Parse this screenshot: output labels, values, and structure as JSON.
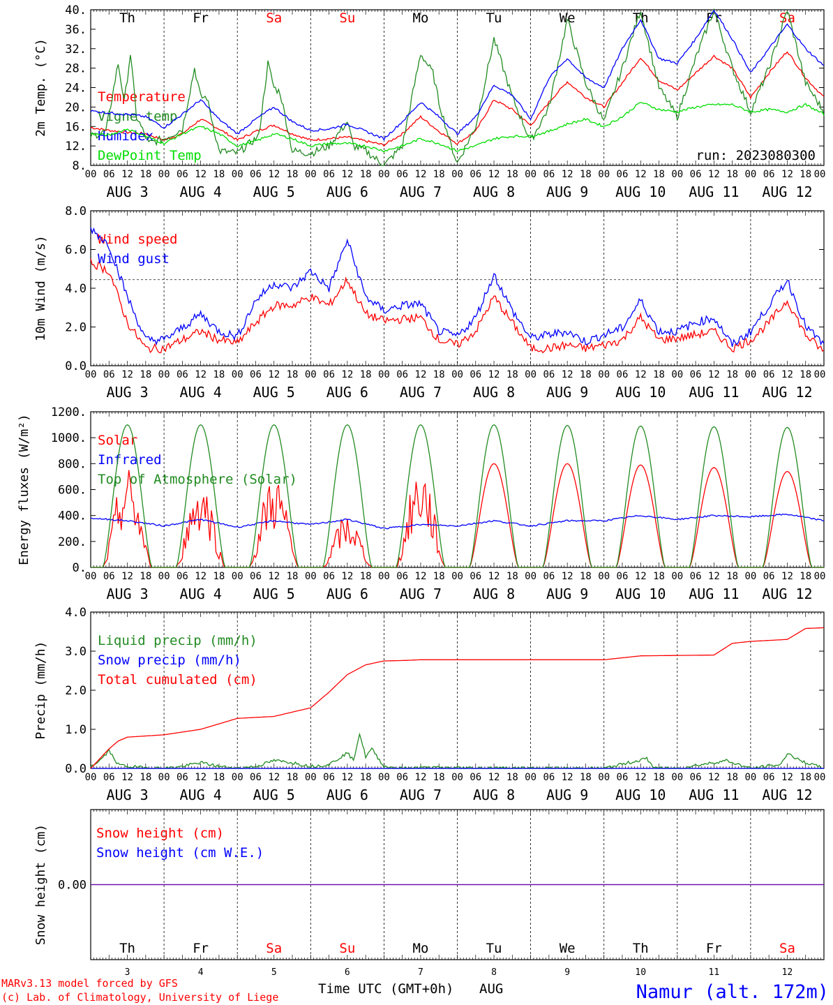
{
  "colors": {
    "red": "#ff0000",
    "green": "#228b22",
    "blue": "#0000ff",
    "lime": "#00dd00",
    "purple": "#6a0dad",
    "axis": "#000000"
  },
  "days": [
    "Th",
    "Fr",
    "Sa",
    "Su",
    "Mo",
    "Tu",
    "We",
    "Th",
    "Fr",
    "Sa"
  ],
  "weekend_days": [
    2,
    3,
    9
  ],
  "date_labels": [
    "AUG  3",
    "AUG  4",
    "AUG  5",
    "AUG  6",
    "AUG  7",
    "AUG  8",
    "AUG  9",
    "AUG 10",
    "AUG 11",
    "AUG 12"
  ],
  "hour_labels": [
    "00",
    "06",
    "12",
    "18"
  ],
  "hour_end_label": "00",
  "chart_data": [
    {
      "id": "temp",
      "type": "line",
      "ylabel": "2m Temp. (°C)",
      "ylim": [
        8,
        40
      ],
      "yticks": [
        "8.",
        "12.",
        "16.",
        "20.",
        "24.",
        "28.",
        "32.",
        "36.",
        "40."
      ],
      "grid": false,
      "annotation": "run: 2023080300",
      "x_unit": "hours from AUG 3 00 UTC",
      "series": [
        {
          "name": "Temperature",
          "color": "red",
          "x": [
            0,
            6,
            12,
            18,
            24,
            30,
            36,
            42,
            48,
            54,
            60,
            66,
            72,
            78,
            84,
            90,
            96,
            102,
            108,
            114,
            120,
            126,
            132,
            138,
            144,
            150,
            156,
            162,
            168,
            174,
            180,
            186,
            192,
            198,
            204,
            210,
            216,
            222,
            228,
            234,
            240
          ],
          "values": [
            15.8,
            15.2,
            14.8,
            14.5,
            13.2,
            14.5,
            17.5,
            15.5,
            13.2,
            15.0,
            16.3,
            14.5,
            13.2,
            13.5,
            13.8,
            13.0,
            12.2,
            14.5,
            18.0,
            15.0,
            12.5,
            15.0,
            21.5,
            19.5,
            16.2,
            21.0,
            25.2,
            22.0,
            20.0,
            25.0,
            30.2,
            25.5,
            23.5,
            27.0,
            30.5,
            28.0,
            22.0,
            27.0,
            31.5,
            26.0,
            22.0
          ]
        },
        {
          "name": "Vigne temp",
          "color": "green",
          "x": [
            0,
            5,
            9,
            11,
            13,
            15,
            19,
            24,
            30,
            34,
            36,
            38,
            42,
            48,
            55,
            58,
            60,
            62,
            66,
            72,
            78,
            84,
            86,
            90,
            96,
            102,
            108,
            112,
            114,
            118,
            120,
            126,
            132,
            138,
            144,
            150,
            156,
            162,
            168,
            174,
            180,
            186,
            192,
            198,
            204,
            210,
            216,
            222,
            228,
            234,
            240
          ],
          "values": [
            14.0,
            15.0,
            29.0,
            21.0,
            31.0,
            18.0,
            12.5,
            13.5,
            15.5,
            28.0,
            22.0,
            22.0,
            11.0,
            10.5,
            14.0,
            29.0,
            24.0,
            23.0,
            11.0,
            10.5,
            12.0,
            17.0,
            12.0,
            11.0,
            8.0,
            12.0,
            31.0,
            27.0,
            21.0,
            12.0,
            8.5,
            16.0,
            34.0,
            22.0,
            13.0,
            20.0,
            38.0,
            25.0,
            17.0,
            28.0,
            40.0,
            24.0,
            18.0,
            30.0,
            40.0,
            28.0,
            19.0,
            28.0,
            40.0,
            25.0,
            19.0
          ]
        },
        {
          "name": "Humidex",
          "color": "blue",
          "x": [
            0,
            6,
            12,
            18,
            24,
            30,
            36,
            42,
            48,
            54,
            60,
            66,
            72,
            78,
            84,
            90,
            96,
            102,
            108,
            114,
            120,
            126,
            132,
            138,
            144,
            150,
            156,
            162,
            168,
            174,
            180,
            186,
            192,
            198,
            204,
            210,
            216,
            222,
            228,
            234,
            240
          ],
          "values": [
            19.2,
            18.8,
            18.5,
            18.0,
            15.8,
            18.5,
            21.5,
            17.5,
            14.5,
            17.5,
            20.0,
            17.0,
            15.2,
            15.5,
            16.5,
            15.0,
            13.5,
            17.0,
            21.0,
            18.0,
            14.5,
            18.0,
            24.5,
            22.5,
            17.5,
            26.0,
            30.0,
            26.0,
            24.0,
            32.0,
            38.0,
            30.0,
            29.0,
            34.0,
            40.0,
            34.0,
            27.0,
            32.0,
            37.0,
            32.0,
            28.5
          ]
        },
        {
          "name": "DewPoint Temp",
          "color": "lime",
          "x": [
            0,
            6,
            12,
            18,
            24,
            30,
            36,
            42,
            48,
            54,
            60,
            66,
            72,
            78,
            84,
            90,
            96,
            102,
            108,
            114,
            120,
            126,
            132,
            138,
            144,
            150,
            156,
            162,
            168,
            174,
            180,
            186,
            192,
            198,
            204,
            210,
            216,
            222,
            228,
            234,
            240
          ],
          "values": [
            14.5,
            14.2,
            15.5,
            14.0,
            12.5,
            14.5,
            16.0,
            14.5,
            12.0,
            13.0,
            14.5,
            13.5,
            12.0,
            12.5,
            12.5,
            12.0,
            11.0,
            12.0,
            13.5,
            12.5,
            11.0,
            12.0,
            13.5,
            14.0,
            14.0,
            15.0,
            16.5,
            17.5,
            16.0,
            18.0,
            21.0,
            19.5,
            19.0,
            20.0,
            20.5,
            20.5,
            19.0,
            19.5,
            19.0,
            20.5,
            18.5
          ]
        }
      ]
    },
    {
      "id": "wind",
      "type": "line",
      "ylabel": "10m Wind (m/s)",
      "ylim": [
        0,
        9
      ],
      "yticks": [
        "0.0",
        "2.0",
        "4.0",
        "6.0",
        "8.0"
      ],
      "reference_line": 5,
      "x_unit": "hours from AUG 3 00 UTC",
      "series": [
        {
          "name": "Wind speed",
          "color": "red",
          "x": [
            0,
            6,
            12,
            18,
            24,
            30,
            36,
            42,
            48,
            54,
            60,
            66,
            72,
            78,
            84,
            90,
            96,
            102,
            108,
            114,
            120,
            126,
            132,
            138,
            144,
            150,
            156,
            162,
            168,
            174,
            180,
            186,
            192,
            198,
            204,
            210,
            216,
            222,
            228,
            234,
            240
          ],
          "values": [
            6.0,
            5.5,
            2.5,
            1.0,
            1.0,
            1.5,
            2.0,
            1.5,
            1.3,
            2.5,
            3.5,
            3.5,
            4.0,
            3.5,
            5.0,
            3.0,
            2.6,
            2.7,
            2.8,
            1.5,
            1.2,
            2.0,
            4.0,
            2.5,
            1.0,
            1.0,
            1.2,
            1.0,
            1.2,
            1.5,
            2.8,
            1.5,
            1.6,
            1.8,
            2.0,
            1.0,
            1.5,
            2.5,
            3.8,
            1.8,
            0.8
          ]
        },
        {
          "name": "Wind gust",
          "color": "blue",
          "x": [
            0,
            6,
            12,
            18,
            24,
            30,
            36,
            42,
            48,
            54,
            60,
            66,
            72,
            78,
            84,
            90,
            96,
            102,
            108,
            114,
            120,
            126,
            132,
            138,
            144,
            150,
            156,
            162,
            168,
            174,
            180,
            186,
            192,
            198,
            204,
            210,
            216,
            222,
            228,
            234,
            240
          ],
          "values": [
            8.0,
            7.0,
            4.0,
            1.5,
            1.5,
            2.2,
            3.0,
            2.0,
            1.7,
            3.8,
            4.8,
            4.5,
            5.5,
            4.5,
            7.3,
            4.0,
            3.2,
            3.5,
            3.6,
            2.0,
            1.7,
            2.8,
            5.3,
            3.2,
            1.6,
            1.8,
            2.0,
            1.4,
            1.8,
            2.2,
            3.8,
            2.0,
            2.0,
            2.5,
            2.8,
            1.2,
            2.0,
            3.5,
            5.0,
            2.3,
            1.2
          ]
        }
      ]
    },
    {
      "id": "energy",
      "type": "line",
      "ylabel": "Energy fluxes (W/m²)",
      "ylim": [
        0,
        1200
      ],
      "yticks": [
        "0.",
        "200.",
        "400.",
        "600.",
        "800.",
        "1000.",
        "1200."
      ],
      "x_unit": "hours from AUG 3 00 UTC",
      "series": [
        {
          "name": "Solar",
          "color": "red",
          "day_peaks": [
            780,
            720,
            750,
            420,
            810,
            800,
            800,
            790,
            770,
            740
          ]
        },
        {
          "name": "Infrared",
          "color": "blue",
          "x": [
            0,
            12,
            24,
            36,
            48,
            60,
            72,
            84,
            96,
            108,
            120,
            132,
            144,
            156,
            168,
            180,
            192,
            204,
            216,
            228,
            240
          ],
          "values": [
            380,
            360,
            320,
            370,
            310,
            360,
            330,
            370,
            300,
            330,
            320,
            360,
            320,
            360,
            360,
            400,
            370,
            400,
            390,
            410,
            360
          ]
        },
        {
          "name": "Top of Atmosphere (Solar)",
          "color": "green",
          "day_peaks": [
            1100,
            1100,
            1100,
            1100,
            1100,
            1100,
            1095,
            1090,
            1085,
            1080
          ]
        }
      ]
    },
    {
      "id": "precip",
      "type": "line",
      "ylabel": "Precip (mm/h)",
      "ylim": [
        0,
        4
      ],
      "yticks": [
        "0.0",
        "1.0",
        "2.0",
        "3.0",
        "4.0"
      ],
      "x_unit": "hours from AUG 3 00 UTC",
      "series": [
        {
          "name": "Liquid precip (mm/h)",
          "color": "green",
          "x": [
            0,
            3,
            6,
            9,
            12,
            18,
            24,
            30,
            36,
            42,
            48,
            54,
            60,
            66,
            72,
            78,
            84,
            86,
            88,
            90,
            92,
            96,
            102,
            108,
            150,
            168,
            182,
            184,
            186,
            192,
            204,
            208,
            212,
            216,
            226,
            228,
            232,
            236,
            240
          ],
          "values": [
            0.05,
            0.2,
            0.45,
            0.1,
            0.05,
            0.02,
            0.0,
            0.05,
            0.15,
            0.05,
            0.0,
            0.05,
            0.2,
            0.15,
            0.05,
            0.1,
            0.4,
            0.2,
            0.9,
            0.3,
            0.5,
            0.05,
            0.0,
            0.02,
            0.0,
            0.0,
            0.25,
            0.05,
            0.0,
            0.0,
            0.15,
            0.2,
            0.1,
            0.0,
            0.1,
            0.4,
            0.2,
            0.1,
            0.0
          ]
        },
        {
          "name": "Snow precip (mm/h)",
          "color": "blue",
          "x": [
            0,
            240
          ],
          "values": [
            0,
            0
          ]
        },
        {
          "name": "Total cumulated (cm)",
          "color": "red",
          "x": [
            0,
            6,
            9,
            12,
            24,
            36,
            48,
            60,
            72,
            78,
            84,
            90,
            96,
            102,
            108,
            132,
            168,
            180,
            192,
            204,
            210,
            216,
            228,
            234,
            240
          ],
          "values": [
            0.0,
            0.5,
            0.7,
            0.8,
            0.86,
            1.0,
            1.28,
            1.33,
            1.55,
            1.95,
            2.4,
            2.65,
            2.75,
            2.76,
            2.78,
            2.78,
            2.78,
            2.88,
            2.89,
            2.9,
            3.2,
            3.25,
            3.3,
            3.58,
            3.6
          ]
        }
      ]
    },
    {
      "id": "snow",
      "type": "line",
      "ylabel": "Snow height (cm)",
      "ytick_value": "0.00",
      "x_unit": "hours from AUG 3 00 UTC",
      "series": [
        {
          "name": "Snow height (cm)",
          "color": "red",
          "x": [
            0,
            240
          ],
          "values": [
            0,
            0
          ]
        },
        {
          "name": "Snow height (cm W.E.)",
          "color": "blue",
          "x": [
            0,
            240
          ],
          "values": [
            0,
            0
          ]
        }
      ]
    }
  ],
  "bottom": {
    "day_numbers": [
      "3",
      "4",
      "5",
      "6",
      "7",
      "8",
      "9",
      "10",
      "11",
      "12"
    ],
    "xlabel": "Time UTC (GMT+0h)",
    "month": "AUG",
    "credit1": "MARv3.13 model forced by GFS",
    "credit2": "(c) Lab. of Climatology, University of Liege",
    "location": "Namur (alt. 172m)"
  }
}
